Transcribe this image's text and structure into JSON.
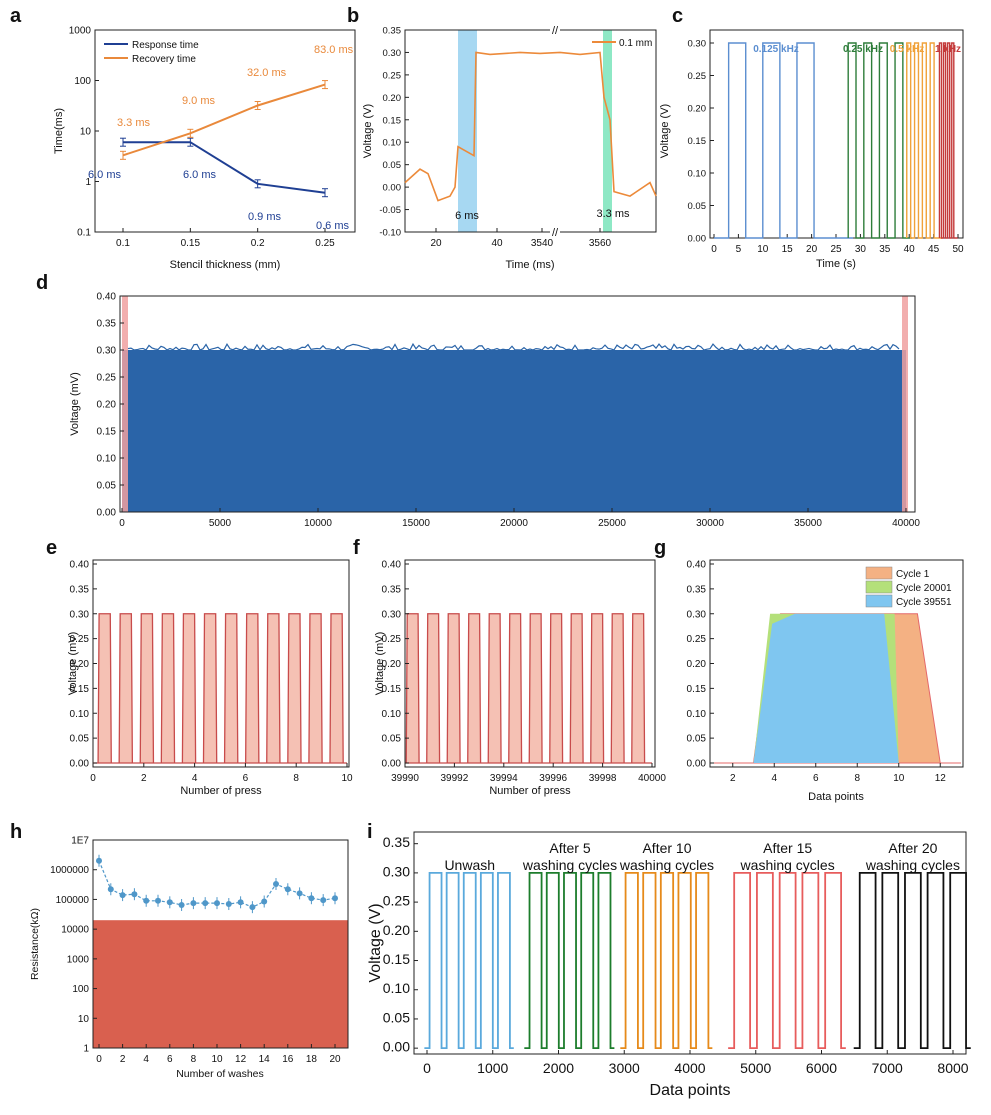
{
  "figure": {
    "panel_letters": [
      "a",
      "b",
      "c",
      "d",
      "e",
      "f",
      "g",
      "h",
      "i"
    ]
  },
  "chart_data": [
    {
      "panel": "a",
      "type": "line",
      "scale": "log",
      "xlabel": "Stencil thickness (mm)",
      "ylabel": "Time(ms)",
      "x": [
        0.1,
        0.15,
        0.2,
        0.25
      ],
      "x_ticks": [
        "0.1",
        "0.15",
        "0.2",
        "0.25"
      ],
      "y_ticks": [
        "0.1",
        "1",
        "10",
        "100",
        "1000"
      ],
      "ylim": [
        0.1,
        1000
      ],
      "series": [
        {
          "name": "Response time",
          "color": "#1f3f93",
          "values": [
            6.0,
            6.0,
            0.9,
            0.6
          ],
          "labels": [
            "6.0 ms",
            "6.0 ms",
            "0.9 ms",
            "0.6 ms"
          ]
        },
        {
          "name": "Recovery time",
          "color": "#e9893b",
          "values": [
            3.3,
            9.0,
            32.0,
            83.0
          ],
          "labels": [
            "3.3 ms",
            "9.0 ms",
            "32.0 ms",
            "83.0 ms"
          ]
        }
      ]
    },
    {
      "panel": "b",
      "type": "line",
      "xlabel": "Time (ms)",
      "ylabel": "Voltage (V)",
      "legend": "0.1 mm",
      "x_ticks": [
        "20",
        "40",
        "3540",
        "3560"
      ],
      "y_ticks": [
        "-0.10",
        "-0.05",
        "0.00",
        "0.05",
        "0.10",
        "0.15",
        "0.20",
        "0.25",
        "0.30",
        "0.35"
      ],
      "ylim": [
        -0.1,
        0.35
      ],
      "annotations": [
        "6 ms",
        "3.3 ms"
      ],
      "plateau": 0.3
    },
    {
      "panel": "c",
      "type": "line",
      "xlabel": "Time (s)",
      "ylabel": "Voltage (V)",
      "x_ticks": [
        "0",
        "5",
        "10",
        "15",
        "20",
        "25",
        "30",
        "35",
        "40",
        "45",
        "50"
      ],
      "y_ticks": [
        "0.00",
        "0.05",
        "0.10",
        "0.15",
        "0.20",
        "0.25",
        "0.30"
      ],
      "ylim": [
        0,
        0.32
      ],
      "series": [
        {
          "name": "0.125 kHz",
          "color": "#5b8ed0"
        },
        {
          "name": "0.25 kHz",
          "color": "#2e7d3a"
        },
        {
          "name": "0.5 kHz",
          "color": "#f0a23a"
        },
        {
          "name": "1 kHz",
          "color": "#c43a3a"
        }
      ],
      "plateau": 0.3
    },
    {
      "panel": "d",
      "type": "area",
      "xlabel": "",
      "ylabel": "Voltage (mV)",
      "x_ticks": [
        "0",
        "5000",
        "10000",
        "15000",
        "20000",
        "25000",
        "30000",
        "35000",
        "40000"
      ],
      "y_ticks": [
        "0.00",
        "0.05",
        "0.10",
        "0.15",
        "0.20",
        "0.25",
        "0.30",
        "0.35",
        "0.40"
      ],
      "xlim": [
        0,
        40000
      ],
      "ylim": [
        0,
        0.4
      ],
      "plateau": 0.3,
      "color": "#2a64a8"
    },
    {
      "panel": "e",
      "type": "area",
      "xlabel": "Number of press",
      "ylabel": "Voltage (mV)",
      "x_ticks": [
        "0",
        "2",
        "4",
        "6",
        "8",
        "10"
      ],
      "y_ticks": [
        "0.00",
        "0.05",
        "0.10",
        "0.15",
        "0.20",
        "0.25",
        "0.30",
        "0.35",
        "0.40"
      ],
      "xlim": [
        0,
        10
      ],
      "ylim": [
        0,
        0.4
      ],
      "plateau": 0.3
    },
    {
      "panel": "f",
      "type": "area",
      "xlabel": "Number of press",
      "ylabel": "Voltage (mV)",
      "x_ticks": [
        "39990",
        "39992",
        "39994",
        "39996",
        "39998",
        "40000"
      ],
      "y_ticks": [
        "0.00",
        "0.05",
        "0.10",
        "0.15",
        "0.20",
        "0.25",
        "0.30",
        "0.35",
        "0.40"
      ],
      "xlim": [
        39990,
        40000
      ],
      "ylim": [
        0,
        0.4
      ],
      "plateau": 0.3
    },
    {
      "panel": "g",
      "type": "area",
      "xlabel": "Data points",
      "ylabel": "",
      "x_ticks": [
        "2",
        "4",
        "6",
        "8",
        "10",
        "12"
      ],
      "y_ticks": [
        "0.00",
        "0.05",
        "0.10",
        "0.15",
        "0.20",
        "0.25",
        "0.30",
        "0.35",
        "0.40"
      ],
      "xlim": [
        1,
        13
      ],
      "ylim": [
        0,
        0.4
      ],
      "series": [
        {
          "name": "Cycle 1",
          "color": "#f4b183",
          "x": [
            1,
            3,
            3.9,
            4.3,
            9,
            10.9,
            12,
            13
          ],
          "y": [
            0,
            0,
            0.28,
            0.3,
            0.3,
            0.3,
            0,
            0
          ]
        },
        {
          "name": "Cycle 20001",
          "color": "#b4e07a",
          "x": [
            1,
            3,
            3.8,
            4.3,
            9,
            9.8,
            10,
            13
          ],
          "y": [
            0,
            0,
            0.3,
            0.3,
            0.3,
            0.3,
            0,
            0
          ]
        },
        {
          "name": "Cycle 39551",
          "color": "#7fc6f0",
          "x": [
            1,
            3,
            3.9,
            5,
            9,
            9.3,
            10,
            13
          ],
          "y": [
            0,
            0,
            0.28,
            0.3,
            0.3,
            0.3,
            0,
            0
          ]
        }
      ]
    },
    {
      "panel": "h",
      "type": "line",
      "scale": "log",
      "xlabel": "Number of washes",
      "ylabel": "Resistance(kΩ)",
      "x": [
        0,
        1,
        2,
        3,
        4,
        5,
        6,
        7,
        8,
        9,
        10,
        11,
        12,
        13,
        14,
        15,
        16,
        17,
        18,
        19,
        20
      ],
      "values": [
        2000000,
        220000,
        140000,
        150000,
        90000,
        90000,
        80000,
        65000,
        75000,
        75000,
        75000,
        70000,
        80000,
        55000,
        85000,
        330000,
        220000,
        160000,
        110000,
        95000,
        110000
      ],
      "x_ticks": [
        "0",
        "2",
        "4",
        "6",
        "8",
        "10",
        "12",
        "14",
        "16",
        "18",
        "20"
      ],
      "y_ticks": [
        "1",
        "10",
        "100",
        "1000",
        "10000",
        "100000",
        "1000000",
        "1E7"
      ],
      "ylim": [
        1,
        10000000
      ],
      "threshold": 20000,
      "threshold_color": "#d9604f",
      "color": "#4f97c9"
    },
    {
      "panel": "i",
      "type": "line",
      "xlabel": "Data points",
      "ylabel": "Voltage (V)",
      "x_ticks": [
        "0",
        "1000",
        "2000",
        "3000",
        "4000",
        "5000",
        "6000",
        "7000",
        "8000"
      ],
      "y_ticks": [
        "0.00",
        "0.05",
        "0.10",
        "0.15",
        "0.20",
        "0.25",
        "0.30",
        "0.35"
      ],
      "xlim": [
        0,
        8300
      ],
      "ylim": [
        -0.01,
        0.37
      ],
      "plateau": 0.3,
      "series": [
        {
          "name": "Unwash",
          "label_lines": [
            "Unwash"
          ],
          "color": "#5aa9dc",
          "start": 0,
          "end": 1300
        },
        {
          "name": "After 5 washing cycles",
          "label_lines": [
            "After 5",
            "washing cycles"
          ],
          "color": "#1d7d2c",
          "start": 1520,
          "end": 2830
        },
        {
          "name": "After 10 washing cycles",
          "label_lines": [
            "After 10",
            "washing cycles"
          ],
          "color": "#e68a1a",
          "start": 2980,
          "end": 4320
        },
        {
          "name": "After 15 washing cycles",
          "label_lines": [
            "After 15",
            "washing cycles"
          ],
          "color": "#e75c5c",
          "start": 4620,
          "end": 6350
        },
        {
          "name": "After 20 washing cycles",
          "label_lines": [
            "After 20",
            "washing cycles"
          ],
          "color": "#111111",
          "start": 6530,
          "end": 8250
        }
      ]
    }
  ]
}
